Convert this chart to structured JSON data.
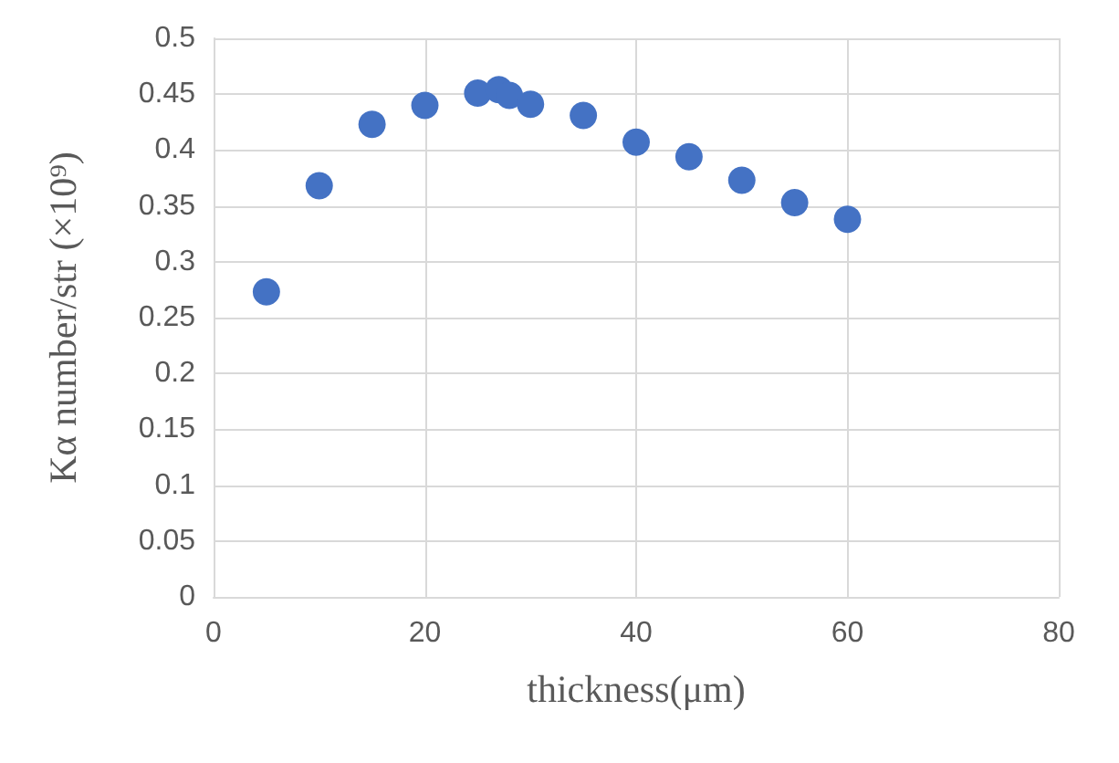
{
  "chart_data": {
    "type": "scatter",
    "xlabel": "thickness(μm)",
    "ylabel": "Kα number/str (×10⁹)",
    "x": [
      5,
      10,
      15,
      20,
      25,
      27,
      28,
      30,
      35,
      40,
      45,
      50,
      55,
      60
    ],
    "series": [
      {
        "color": "#4472c4",
        "values": [
          0.273,
          0.368,
          0.423,
          0.44,
          0.451,
          0.454,
          0.449,
          0.441,
          0.431,
          0.407,
          0.394,
          0.373,
          0.353,
          0.338
        ]
      }
    ],
    "xlim": [
      0,
      80
    ],
    "xticks": [
      0,
      20,
      40,
      60,
      80
    ],
    "ylim": [
      0,
      0.5
    ],
    "yticks": [
      0,
      0.05,
      0.1,
      0.15,
      0.2,
      0.25,
      0.3,
      0.35,
      0.4,
      0.45,
      0.5
    ],
    "grid": true,
    "marker": "circle"
  }
}
